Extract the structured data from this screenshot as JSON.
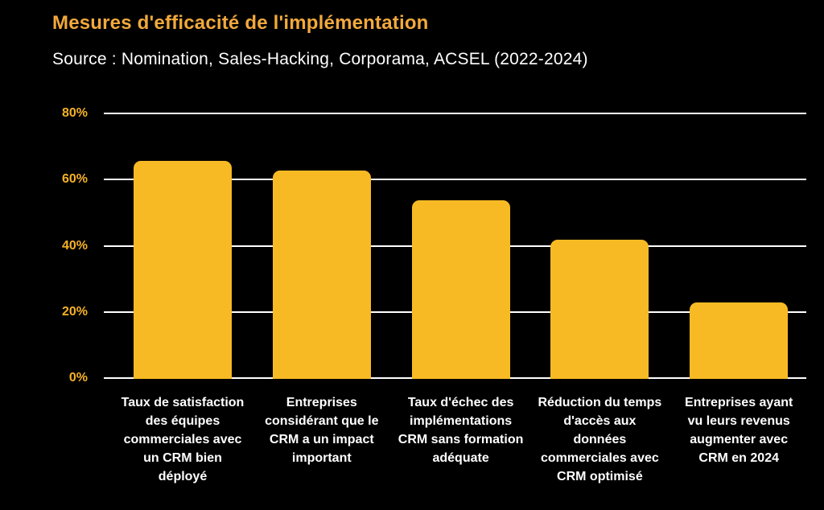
{
  "header": {
    "title": "Mesures d'efficacité de l'implémentation",
    "subtitle": "Source : Nomination, Sales-Hacking, Corporama, ACSEL (2022-2024)"
  },
  "colors": {
    "background": "#000000",
    "title": "#F2A93C",
    "subtitle": "#FFFFFF",
    "bar": "#F8BA24",
    "axis_tick": "#F6B226",
    "gridline": "#FFFFFF",
    "category_label": "#FFFFFF"
  },
  "chart_data": {
    "type": "bar",
    "title": "Mesures d'efficacité de l'implémentation",
    "subtitle": "Source : Nomination, Sales-Hacking, Corporama, ACSEL (2022-2024)",
    "categories": [
      "Taux de satisfaction des équipes commerciales avec un CRM bien déployé",
      "Entreprises considérant que le CRM a un impact important",
      "Taux d'échec des implémentations CRM sans formation adéquate",
      "Réduction du temps d'accès aux données commerciales avec CRM optimisé",
      "Entreprises ayant vu leurs revenus augmenter avec CRM en 2024"
    ],
    "categories_wrapped": [
      "Taux de satisfaction\ndes équipes\ncommerciales avec\nun CRM bien\ndéployé",
      "Entreprises\nconsidérant que le\nCRM a un impact\nimportant",
      "Taux d'échec des\nimplémentations\nCRM sans formation\nadéquate",
      "Réduction du temps\nd'accès aux\ndonnées\ncommerciales avec\nCRM optimisé",
      "Entreprises ayant\nvu leurs revenus\naugmenter avec\nCRM en 2024"
    ],
    "values": [
      66,
      63,
      54,
      42,
      23
    ],
    "unit": "%",
    "xlabel": "",
    "ylabel": "",
    "ylim": [
      0,
      80
    ],
    "ytick_values": [
      0,
      20,
      40,
      60,
      80
    ],
    "yticks": [
      "0%",
      "20%",
      "40%",
      "60%",
      "80%"
    ],
    "grid": true,
    "legend": false,
    "bar_color": "#F8BA24",
    "background": "#000000"
  }
}
